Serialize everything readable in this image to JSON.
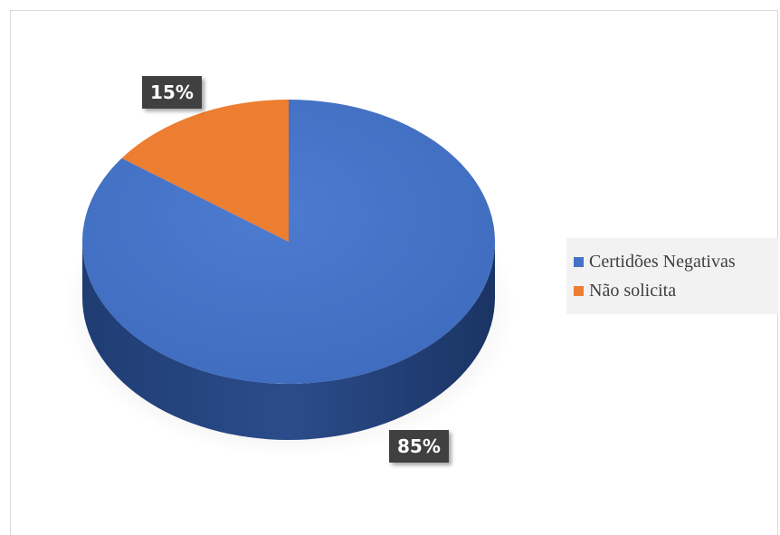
{
  "chart_data": {
    "type": "pie",
    "style": "3d",
    "legend_position": "right",
    "slices": [
      {
        "label": "Certidões Negativas",
        "value": 85,
        "data_label": "85%",
        "color": "#4472c4",
        "side_color": "#2a4a86"
      },
      {
        "label": "Não solicita",
        "value": 15,
        "data_label": "15%",
        "color": "#ed7d31",
        "side_color": "#b85d20"
      }
    ]
  },
  "colors": {
    "label_background": "#404040",
    "label_text": "#ffffff",
    "legend_background": "#f2f2f2"
  }
}
